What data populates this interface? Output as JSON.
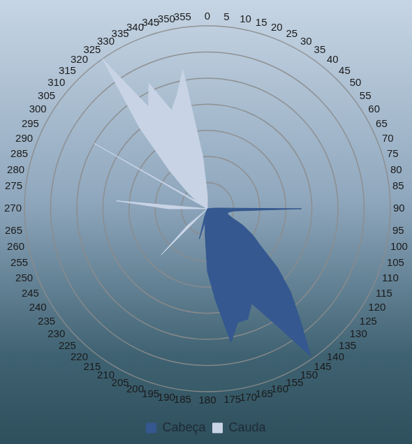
{
  "chart_data": {
    "type": "radar",
    "categories": [
      0,
      5,
      10,
      15,
      20,
      25,
      30,
      35,
      40,
      45,
      50,
      55,
      60,
      65,
      70,
      75,
      80,
      85,
      90,
      95,
      100,
      105,
      110,
      115,
      120,
      125,
      130,
      135,
      140,
      145,
      150,
      155,
      160,
      165,
      170,
      175,
      180,
      185,
      190,
      195,
      200,
      205,
      210,
      215,
      220,
      225,
      230,
      235,
      240,
      245,
      250,
      255,
      260,
      265,
      270,
      275,
      280,
      285,
      290,
      295,
      300,
      305,
      310,
      315,
      320,
      325,
      330,
      335,
      340,
      345,
      350,
      355
    ],
    "series": [
      {
        "name": "Cabeça",
        "color": "#34588f",
        "values": [
          0,
          0,
          0,
          0,
          0,
          0,
          0,
          0,
          0,
          0,
          0,
          0,
          0,
          0,
          0,
          0,
          0,
          0.3,
          3.6,
          1,
          0.8,
          0.8,
          1,
          1.5,
          2,
          2.5,
          3.5,
          4.5,
          5.5,
          6.9,
          5,
          4,
          4.5,
          4.5,
          5.2,
          3.5,
          2.4,
          1,
          0.5,
          1.2,
          0.3,
          0,
          0,
          0,
          0,
          0,
          0,
          0,
          0,
          0,
          0,
          0,
          0,
          0,
          0,
          0,
          0,
          0,
          0,
          0,
          0,
          0,
          0,
          0,
          0,
          0,
          0,
          0,
          0,
          0,
          0,
          0
        ]
      },
      {
        "name": "Cauda",
        "color": "#c8d3e6",
        "values": [
          0.5,
          0,
          0,
          0,
          0,
          0,
          0,
          0,
          0,
          0,
          0,
          0,
          0,
          0,
          0,
          0,
          0,
          0,
          0,
          0,
          0,
          0,
          0,
          0,
          0,
          0,
          0,
          0,
          0,
          0,
          0,
          0,
          0,
          0,
          0,
          0,
          0,
          0,
          0,
          0,
          0,
          0,
          0,
          0,
          0,
          2.5,
          1,
          0,
          0,
          0,
          0,
          0,
          0,
          0,
          1.5,
          3.5,
          0,
          0,
          0,
          0,
          5,
          0.5,
          1,
          2,
          4,
          7,
          4.5,
          5.3,
          4,
          4.5,
          5.4,
          2
        ]
      }
    ],
    "ylim": [
      0,
      7
    ],
    "yticks": [
      0,
      1,
      2,
      3,
      4,
      5,
      6,
      7
    ],
    "grid": true,
    "legend": "bottom",
    "tick_labels": "x"
  }
}
